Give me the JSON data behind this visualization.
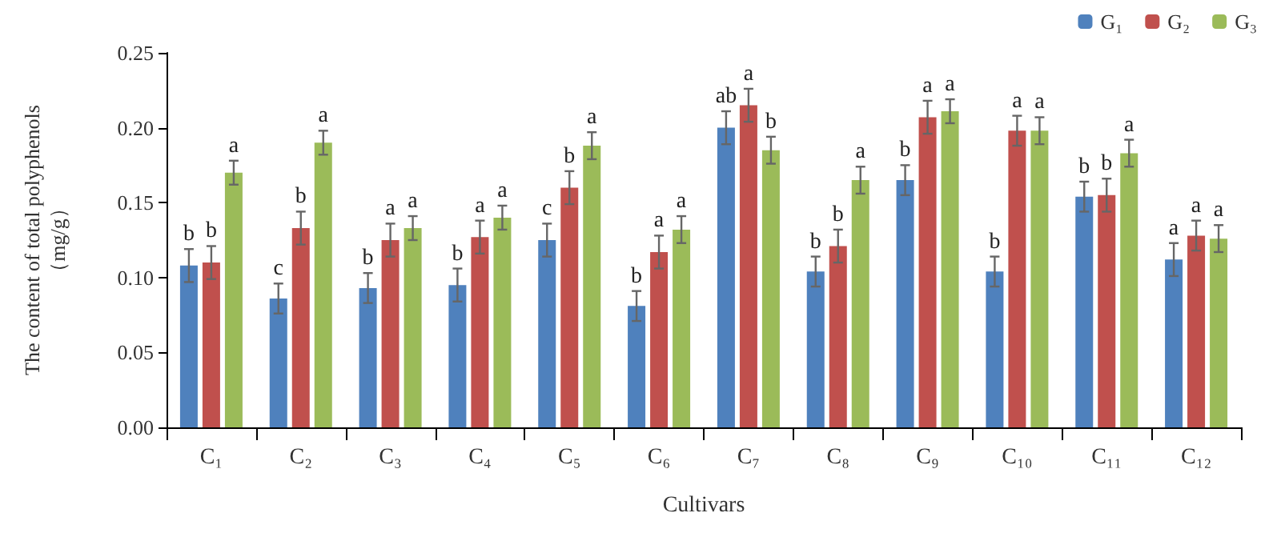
{
  "chart_data": {
    "type": "bar",
    "xlabel": "Cultivars",
    "ylabel": "The content of total polyphenols\n（mg/g）",
    "categories": [
      "C₁",
      "C₂",
      "C₃",
      "C₄",
      "C₅",
      "C₆",
      "C₇",
      "C₈",
      "C₉",
      "C₁₀",
      "C₁₁",
      "C₁₂"
    ],
    "series": [
      {
        "name": "G₁",
        "color": "#4f81bd",
        "values": [
          0.108,
          0.086,
          0.093,
          0.095,
          0.125,
          0.081,
          0.2,
          0.104,
          0.165,
          0.104,
          0.154,
          0.112
        ],
        "errors": [
          0.011,
          0.01,
          0.01,
          0.011,
          0.011,
          0.01,
          0.011,
          0.01,
          0.01,
          0.01,
          0.01,
          0.011
        ],
        "value_labels": [
          "b",
          "c",
          "b",
          "b",
          "c",
          "b",
          "ab",
          "b",
          "b",
          "b",
          "b",
          "a"
        ]
      },
      {
        "name": "G₂",
        "color": "#c0504d",
        "values": [
          0.11,
          0.133,
          0.125,
          0.127,
          0.16,
          0.117,
          0.215,
          0.121,
          0.207,
          0.198,
          0.155,
          0.128
        ],
        "errors": [
          0.011,
          0.011,
          0.011,
          0.011,
          0.011,
          0.011,
          0.011,
          0.011,
          0.011,
          0.01,
          0.011,
          0.01
        ],
        "value_labels": [
          "b",
          "b",
          "a",
          "a",
          "b",
          "a",
          "a",
          "b",
          "a",
          "a",
          "b",
          "a"
        ]
      },
      {
        "name": "G₃",
        "color": "#9bbb59",
        "values": [
          0.17,
          0.19,
          0.133,
          0.14,
          0.188,
          0.132,
          0.185,
          0.165,
          0.211,
          0.198,
          0.183,
          0.126
        ],
        "errors": [
          0.008,
          0.008,
          0.008,
          0.008,
          0.009,
          0.009,
          0.009,
          0.009,
          0.008,
          0.009,
          0.009,
          0.009
        ],
        "value_labels": [
          "a",
          "a",
          "a",
          "a",
          "a",
          "a",
          "b",
          "a",
          "a",
          "a",
          "a",
          "a"
        ]
      }
    ],
    "ylim": [
      0,
      0.25
    ],
    "yticks": [
      {
        "value": 0,
        "label": "0.00"
      },
      {
        "value": 0.05,
        "label": "0.05"
      },
      {
        "value": 0.1,
        "label": "0.10"
      },
      {
        "value": 0.15,
        "label": "0.15"
      },
      {
        "value": 0.2,
        "label": "0.20"
      },
      {
        "value": 0.25,
        "label": "0.25"
      }
    ],
    "grid": false,
    "legend": "top right"
  }
}
